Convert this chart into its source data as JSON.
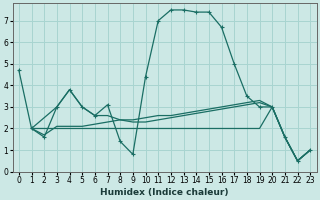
{
  "xlabel": "Humidex (Indice chaleur)",
  "xlim": [
    -0.5,
    23.5
  ],
  "ylim": [
    0,
    7.8
  ],
  "yticks": [
    0,
    1,
    2,
    3,
    4,
    5,
    6,
    7
  ],
  "xticks": [
    0,
    1,
    2,
    3,
    4,
    5,
    6,
    7,
    8,
    9,
    10,
    11,
    12,
    13,
    14,
    15,
    16,
    17,
    18,
    19,
    20,
    21,
    22,
    23
  ],
  "bg_color": "#cce8e5",
  "grid_color": "#a8d4d0",
  "line_color": "#1a6e64",
  "series1": [
    [
      0,
      4.7
    ],
    [
      1,
      2.0
    ],
    [
      2,
      1.6
    ],
    [
      3,
      3.0
    ],
    [
      4,
      3.8
    ],
    [
      5,
      3.0
    ],
    [
      6,
      2.6
    ],
    [
      7,
      3.1
    ],
    [
      8,
      1.4
    ],
    [
      9,
      0.8
    ],
    [
      10,
      4.4
    ],
    [
      11,
      7.0
    ],
    [
      12,
      7.5
    ],
    [
      13,
      7.5
    ],
    [
      14,
      7.4
    ],
    [
      15,
      7.4
    ],
    [
      16,
      6.7
    ],
    [
      17,
      5.0
    ],
    [
      18,
      3.5
    ],
    [
      19,
      3.0
    ],
    [
      20,
      3.0
    ],
    [
      21,
      1.6
    ],
    [
      22,
      0.5
    ],
    [
      23,
      1.0
    ]
  ],
  "series2": [
    [
      1,
      2.0
    ],
    [
      3,
      3.0
    ],
    [
      4,
      3.8
    ],
    [
      5,
      3.0
    ],
    [
      6,
      2.6
    ],
    [
      7,
      2.6
    ],
    [
      8,
      2.4
    ],
    [
      9,
      2.3
    ],
    [
      10,
      2.3
    ],
    [
      11,
      2.4
    ],
    [
      12,
      2.5
    ],
    [
      13,
      2.6
    ],
    [
      14,
      2.7
    ],
    [
      15,
      2.8
    ],
    [
      16,
      2.9
    ],
    [
      17,
      3.0
    ],
    [
      18,
      3.1
    ],
    [
      19,
      3.2
    ],
    [
      20,
      3.0
    ],
    [
      21,
      1.6
    ],
    [
      22,
      0.5
    ],
    [
      23,
      1.0
    ]
  ],
  "series3": [
    [
      1,
      2.0
    ],
    [
      2,
      1.7
    ],
    [
      3,
      2.1
    ],
    [
      4,
      2.1
    ],
    [
      5,
      2.1
    ],
    [
      6,
      2.2
    ],
    [
      7,
      2.3
    ],
    [
      8,
      2.4
    ],
    [
      9,
      2.4
    ],
    [
      10,
      2.5
    ],
    [
      11,
      2.6
    ],
    [
      12,
      2.6
    ],
    [
      13,
      2.7
    ],
    [
      14,
      2.8
    ],
    [
      15,
      2.9
    ],
    [
      16,
      3.0
    ],
    [
      17,
      3.1
    ],
    [
      18,
      3.2
    ],
    [
      19,
      3.3
    ],
    [
      20,
      3.0
    ],
    [
      21,
      1.6
    ],
    [
      22,
      0.5
    ],
    [
      23,
      1.0
    ]
  ],
  "series4": [
    [
      1,
      2.0
    ],
    [
      5,
      2.0
    ],
    [
      10,
      2.0
    ],
    [
      15,
      2.0
    ],
    [
      16,
      2.0
    ],
    [
      17,
      2.0
    ],
    [
      18,
      2.0
    ],
    [
      19,
      2.0
    ],
    [
      20,
      3.0
    ],
    [
      21,
      1.6
    ],
    [
      22,
      0.5
    ],
    [
      23,
      1.0
    ]
  ]
}
